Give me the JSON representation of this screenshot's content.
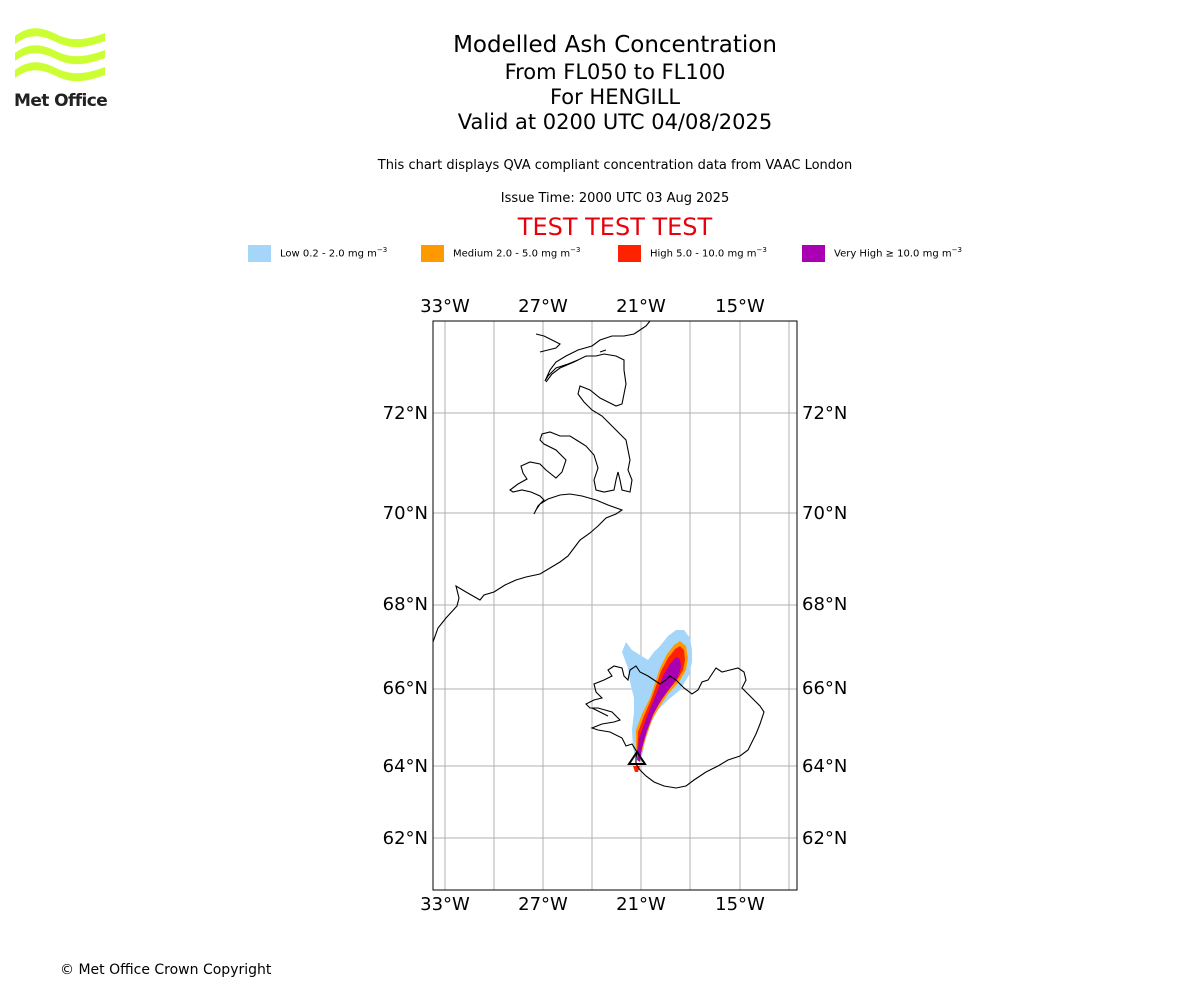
{
  "header": {
    "title": "Modelled Ash Concentration",
    "levels": "From FL050 to FL100",
    "volcano": "For HENGILL",
    "valid": "Valid at 0200 UTC 04/08/2025",
    "compliance": "This chart displays QVA compliant concentration data from VAAC London",
    "issue_time": "Issue Time: 2000 UTC 03 Aug 2025",
    "test_banner": "TEST TEST TEST"
  },
  "logo": {
    "text": "Met Office",
    "color": "#ccff33"
  },
  "legend": [
    {
      "label": "Low 0.2 - 2.0 mg m",
      "color": "#a6d5fa"
    },
    {
      "label": "Medium 2.0 - 5.0 mg m",
      "color": "#ff9900"
    },
    {
      "label": "High 5.0 - 10.0 mg m",
      "color": "#ff2200"
    },
    {
      "label": "Very High ≥ 10.0 mg m",
      "color": "#aa00b3"
    }
  ],
  "legend_unit_exponent": "−3",
  "map": {
    "lon_labels": [
      "33°W",
      "27°W",
      "21°W",
      "15°W"
    ],
    "lat_labels": [
      "72°N",
      "70°N",
      "68°N",
      "66°N",
      "64°N",
      "62°N"
    ],
    "volcano_marker": "triangle-icon"
  },
  "footer": {
    "copyright": "© Met Office Crown Copyright"
  }
}
